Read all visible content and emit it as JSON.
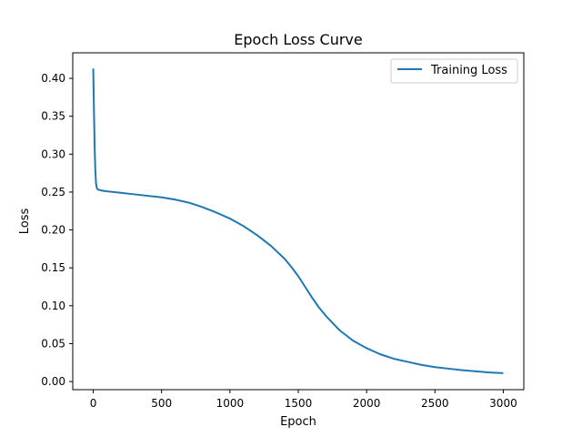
{
  "chart_data": {
    "type": "line",
    "title": "Epoch Loss Curve",
    "xlabel": "Epoch",
    "ylabel": "Loss",
    "xlim": [
      -150,
      3150
    ],
    "ylim": [
      -0.0107,
      0.4337
    ],
    "xticks": [
      0,
      500,
      1000,
      1500,
      2000,
      2500,
      3000
    ],
    "xtick_labels": [
      "0",
      "500",
      "1000",
      "1500",
      "2000",
      "2500",
      "3000"
    ],
    "yticks": [
      0.0,
      0.05,
      0.1,
      0.15,
      0.2,
      0.25,
      0.3,
      0.35,
      0.4
    ],
    "ytick_labels": [
      "0.00",
      "0.05",
      "0.10",
      "0.15",
      "0.20",
      "0.25",
      "0.30",
      "0.35",
      "0.40"
    ],
    "grid": false,
    "legend_position": "top-right",
    "series": [
      {
        "name": "Training Loss",
        "color": "#1f77b4",
        "x": [
          0,
          5,
          10,
          15,
          20,
          25,
          30,
          40,
          60,
          100,
          200,
          300,
          400,
          500,
          600,
          700,
          800,
          900,
          1000,
          1100,
          1200,
          1300,
          1400,
          1450,
          1500,
          1550,
          1600,
          1650,
          1700,
          1800,
          1900,
          2000,
          2100,
          2200,
          2300,
          2400,
          2500,
          2600,
          2700,
          2800,
          2900,
          3000
        ],
        "y": [
          0.413,
          0.36,
          0.31,
          0.28,
          0.262,
          0.256,
          0.254,
          0.253,
          0.252,
          0.251,
          0.249,
          0.247,
          0.245,
          0.243,
          0.24,
          0.236,
          0.23,
          0.223,
          0.215,
          0.205,
          0.193,
          0.179,
          0.162,
          0.151,
          0.139,
          0.125,
          0.111,
          0.098,
          0.087,
          0.068,
          0.054,
          0.044,
          0.036,
          0.03,
          0.026,
          0.022,
          0.019,
          0.017,
          0.015,
          0.0135,
          0.012,
          0.011
        ]
      }
    ]
  }
}
